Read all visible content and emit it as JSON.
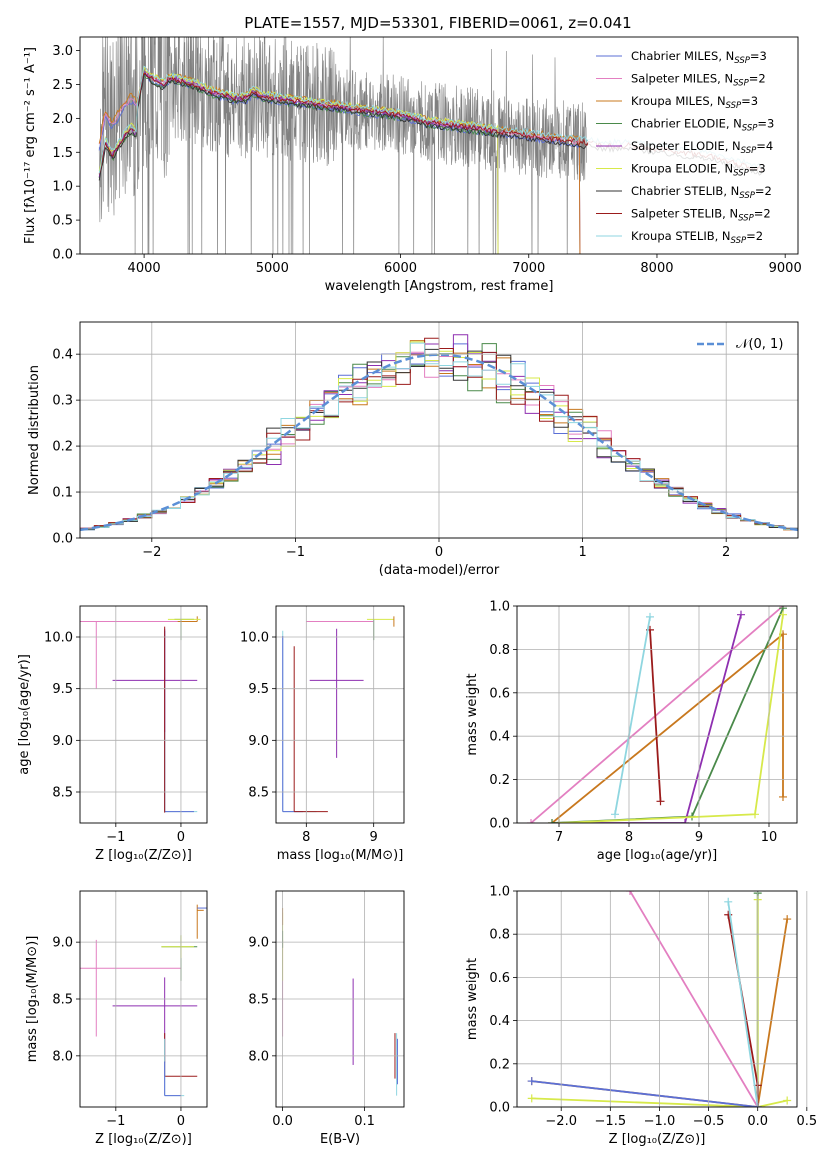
{
  "figure": {
    "title": "PLATE=1557, MJD=53301, FIBERID=0061, z=0.041"
  },
  "colors": {
    "Chabrier MILES": "#5b6fd6",
    "Salpeter MILES": "#e37fc1",
    "Kroupa MILES": "#c8781e",
    "Chabrier ELODIE": "#4a8a4a",
    "Salpeter ELODIE": "#8e2fb0",
    "Kroupa ELODIE": "#d7e94a",
    "Chabrier STELIB": "#333333",
    "Salpeter STELIB": "#9b1b1b",
    "Kroupa STELIB": "#8fd6e0",
    "data": "#808080",
    "normal": "#5b8fd6"
  },
  "chart_data": [
    {
      "type": "line",
      "title": "PLATE=1557, MJD=53301, FIBERID=0061, z=0.041",
      "xlabel": "wavelength [Angstrom, rest frame]",
      "ylabel": "Flux [fλ10⁻¹⁷ erg cm⁻² s⁻¹ A⁻¹]",
      "xlim": [
        3500,
        9100
      ],
      "ylim": [
        0,
        3.2
      ],
      "xticks": [
        "4000",
        "5000",
        "6000",
        "7000",
        "8000",
        "9000"
      ],
      "yticks": [
        "0.0",
        "0.5",
        "1.0",
        "1.5",
        "2.0",
        "2.5",
        "3.0"
      ],
      "legend_position": "top-right",
      "legend": [
        {
          "label": "Chabrier MILES, N",
          "sub": "SSP",
          "eq": "=3"
        },
        {
          "label": "Salpeter MILES, N",
          "sub": "SSP",
          "eq": "=2"
        },
        {
          "label": "Kroupa MILES, N",
          "sub": "SSP",
          "eq": "=3"
        },
        {
          "label": "Chabrier ELODIE, N",
          "sub": "SSP",
          "eq": "=3"
        },
        {
          "label": "Salpeter ELODIE, N",
          "sub": "SSP",
          "eq": "=4"
        },
        {
          "label": "Kroupa ELODIE, N",
          "sub": "SSP",
          "eq": "=3"
        },
        {
          "label": "Chabrier STELIB, N",
          "sub": "SSP",
          "eq": "=2"
        },
        {
          "label": "Salpeter STELIB, N",
          "sub": "SSP",
          "eq": "=2"
        },
        {
          "label": "Kroupa STELIB, N",
          "sub": "SSP",
          "eq": "=2"
        }
      ],
      "model_curve": {
        "x": [
          3650,
          3700,
          3750,
          3800,
          3850,
          3900,
          3950,
          4000,
          4050,
          4100,
          4150,
          4200,
          4300,
          4400,
          4500,
          4600,
          4700,
          4800,
          4850,
          4900,
          5000,
          5200,
          5400,
          5600,
          5800,
          6000,
          6200,
          6400,
          6600,
          6800,
          7000,
          7200,
          7400,
          7600,
          7800,
          8000,
          8200,
          8400,
          8600,
          8800
        ],
        "y": [
          1.6,
          2.1,
          1.9,
          2.05,
          2.2,
          2.3,
          2.2,
          2.7,
          2.6,
          2.55,
          2.5,
          2.6,
          2.55,
          2.5,
          2.4,
          2.35,
          2.3,
          2.3,
          2.4,
          2.35,
          2.3,
          2.25,
          2.2,
          2.15,
          2.1,
          2.05,
          1.95,
          1.9,
          1.85,
          1.8,
          1.75,
          1.7,
          1.65,
          1.6,
          1.6,
          1.55,
          1.5,
          1.45,
          1.35,
          1.25
        ]
      }
    },
    {
      "type": "line",
      "xlabel": "(data-model)/error",
      "ylabel": "Normed distribution",
      "xlim": [
        -2.5,
        2.5
      ],
      "ylim": [
        0,
        0.47
      ],
      "xticks": [
        "−2",
        "−1",
        "0",
        "1",
        "2"
      ],
      "yticks": [
        "0.0",
        "0.1",
        "0.2",
        "0.3",
        "0.4"
      ],
      "grid": true,
      "legend_position": "top-right",
      "legend": [
        "𝒩(0, 1)"
      ],
      "series": [
        {
          "name": "𝒩(0, 1)",
          "function": "standard normal pdf"
        }
      ]
    },
    {
      "type": "scatter",
      "xlabel": "Z [log₁₀(Z/Z⊙)]",
      "ylabel": "age  [log₁₀(age/yr)]",
      "xlim": [
        -1.55,
        0.4
      ],
      "ylim": [
        8.2,
        10.3
      ],
      "xticks": [
        "−1",
        "0"
      ],
      "yticks": [
        "8.5",
        "9.0",
        "9.5",
        "10.0"
      ],
      "grid": true
    },
    {
      "type": "scatter",
      "xlabel": "mass [log₁₀(M/M⊙)]",
      "ylabel": "",
      "xlim": [
        7.55,
        9.45
      ],
      "ylim": [
        8.2,
        10.3
      ],
      "xticks": [
        "8",
        "9"
      ],
      "yticks": [
        "8.5",
        "9.0",
        "9.5",
        "10.0"
      ],
      "grid": true
    },
    {
      "type": "line",
      "xlabel": "age  [log₁₀(age/yr)]",
      "ylabel": "mass weight",
      "xlim": [
        6.4,
        10.4
      ],
      "ylim": [
        0,
        1.0
      ],
      "xticks": [
        "7",
        "8",
        "9",
        "10"
      ],
      "yticks": [
        "0.0",
        "0.2",
        "0.4",
        "0.6",
        "0.8",
        "1.0"
      ],
      "grid": true,
      "series": [
        {
          "x": [
            6.6,
            10.2
          ],
          "y": [
            0.0,
            1.0
          ],
          "color": "Salpeter MILES"
        },
        {
          "x": [
            6.9,
            10.2,
            10.2
          ],
          "y": [
            0.0,
            0.87,
            0.12
          ],
          "color": "Kroupa MILES"
        },
        {
          "x": [
            6.9,
            8.9,
            10.2
          ],
          "y": [
            0.0,
            0.03,
            0.99
          ],
          "color": "Chabrier ELODIE"
        },
        {
          "x": [
            7.0,
            8.8,
            9.6
          ],
          "y": [
            0.0,
            0.0,
            0.96
          ],
          "color": "Salpeter ELODIE"
        },
        {
          "x": [
            7.0,
            9.8,
            10.2
          ],
          "y": [
            0.0,
            0.04,
            0.96
          ],
          "color": "Kroupa ELODIE"
        },
        {
          "x": [
            8.3,
            8.45
          ],
          "y": [
            0.89,
            0.1
          ],
          "color": "Salpeter STELIB"
        },
        {
          "x": [
            7.8,
            8.3
          ],
          "y": [
            0.04,
            0.95
          ],
          "color": "Kroupa STELIB"
        }
      ]
    },
    {
      "type": "scatter",
      "xlabel": "Z [log₁₀(Z/Z⊙)]",
      "ylabel": "mass [log₁₀(M/M⊙)]",
      "xlim": [
        -1.55,
        0.4
      ],
      "ylim": [
        7.55,
        9.45
      ],
      "xticks": [
        "−1",
        "0"
      ],
      "yticks": [
        "8.0",
        "8.5",
        "9.0"
      ],
      "grid": true
    },
    {
      "type": "scatter",
      "xlabel": "E(B-V)",
      "ylabel": "",
      "xlim": [
        -0.008,
        0.148
      ],
      "ylim": [
        7.55,
        9.45
      ],
      "xticks": [
        "0.0",
        "0.1"
      ],
      "yticks": [
        "8.0",
        "8.5",
        "9.0"
      ],
      "grid": true
    },
    {
      "type": "line",
      "xlabel": "Z [log₁₀(Z/Z⊙)]",
      "ylabel": "mass weight",
      "xlim": [
        -2.45,
        0.4
      ],
      "ylim": [
        0,
        1.0
      ],
      "xticks": [
        "−2.0",
        "−1.5",
        "−1.0",
        "−0.5",
        "0.0",
        "0.5"
      ],
      "yticks": [
        "0.0",
        "0.2",
        "0.4",
        "0.6",
        "0.8",
        "1.0"
      ],
      "grid": true,
      "series": [
        {
          "x": [
            -2.3,
            0.0,
            0.3
          ],
          "y": [
            0.12,
            0.0,
            0.87
          ],
          "color": "Kroupa MILES"
        },
        {
          "x": [
            -1.3,
            0.0
          ],
          "y": [
            1.0,
            0.0
          ],
          "color": "Salpeter MILES"
        },
        {
          "x": [
            -2.3,
            0.0,
            0.3
          ],
          "y": [
            0.04,
            0.0,
            0.03
          ],
          "color": "Kroupa ELODIE"
        },
        {
          "x": [
            0.0,
            0.0
          ],
          "y": [
            0.0,
            0.99
          ],
          "color": "Chabrier ELODIE"
        },
        {
          "x": [
            0.0,
            0.0
          ],
          "y": [
            0.0,
            0.96
          ],
          "color": "Kroupa ELODIE"
        },
        {
          "x": [
            -0.3,
            0.0,
            0.0
          ],
          "y": [
            0.89,
            0.1,
            0.0
          ],
          "color": "Salpeter STELIB"
        },
        {
          "x": [
            -0.3,
            0.0
          ],
          "y": [
            0.95,
            0.0
          ],
          "color": "Kroupa STELIB"
        },
        {
          "x": [
            -2.3,
            0.0
          ],
          "y": [
            0.12,
            0.0
          ],
          "color": "Chabrier MILES"
        }
      ]
    }
  ]
}
